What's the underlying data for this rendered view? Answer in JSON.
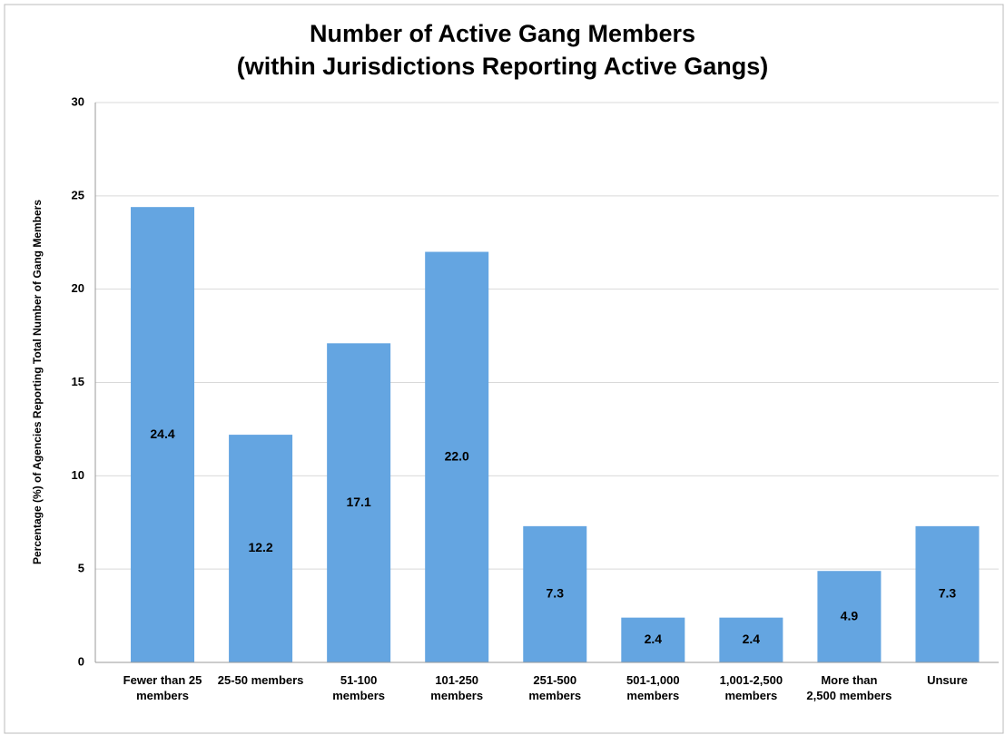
{
  "chart_data": {
    "type": "bar",
    "title": "Number of Active Gang Members",
    "subtitle": "(within Jurisdictions Reporting Active Gangs)",
    "y_label": "Percentage (%) of Agencies Reporting Total Number of Gang Members",
    "categories": [
      "Fewer than 25 members",
      "25-50 members",
      "51-100 members",
      "101-250 members",
      "251-500 members",
      "501-1,000 members",
      "1,001-2,500 members",
      "More than 2,500 members",
      "Unsure"
    ],
    "values": [
      24.4,
      12.2,
      17.1,
      22.0,
      7.3,
      2.4,
      2.4,
      4.9,
      7.3
    ],
    "value_labels": [
      "24.4",
      "12.2",
      "17.1",
      "22.0",
      "7.3",
      "2.4",
      "2.4",
      "4.9",
      "7.3"
    ],
    "color": "#64a5e1",
    "ylim": [
      0,
      30
    ],
    "yticks": [
      0,
      5,
      10,
      15,
      20,
      25,
      30
    ],
    "grid": true
  }
}
